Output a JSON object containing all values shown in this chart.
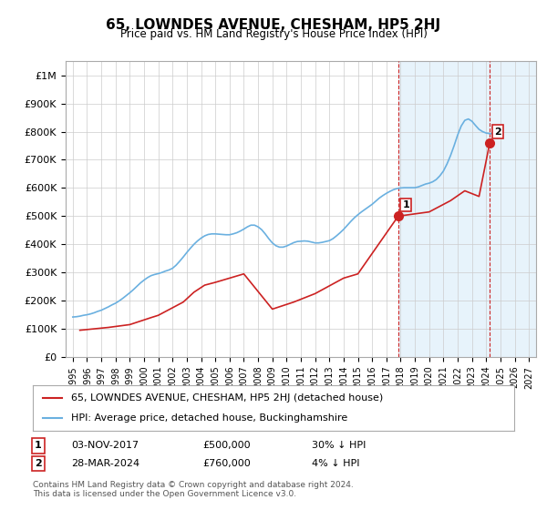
{
  "title": "65, LOWNDES AVENUE, CHESHAM, HP5 2HJ",
  "subtitle": "Price paid vs. HM Land Registry's House Price Index (HPI)",
  "background_color": "#ffffff",
  "plot_bg_color": "#ffffff",
  "grid_color": "#cccccc",
  "hpi_shaded_color": "#d0e8f8",
  "ylabel_color": "#000000",
  "ylim": [
    0,
    1050000
  ],
  "yticks": [
    0,
    100000,
    200000,
    300000,
    400000,
    500000,
    600000,
    700000,
    800000,
    900000,
    1000000
  ],
  "ytick_labels": [
    "£0",
    "£100K",
    "£200K",
    "£300K",
    "£400K",
    "£500K",
    "£600K",
    "£700K",
    "£800K",
    "£900K",
    "£1M"
  ],
  "xlim_start": 1994.5,
  "xlim_end": 2027.5,
  "xticks": [
    1995,
    1996,
    1997,
    1998,
    1999,
    2000,
    2001,
    2002,
    2003,
    2004,
    2005,
    2006,
    2007,
    2008,
    2009,
    2010,
    2011,
    2012,
    2013,
    2014,
    2015,
    2016,
    2017,
    2018,
    2019,
    2020,
    2021,
    2022,
    2023,
    2024,
    2025,
    2026,
    2027
  ],
  "hpi_line_color": "#6ab0e0",
  "price_line_color": "#cc2222",
  "marker_color": "#cc2222",
  "vline_color": "#cc2222",
  "marker1_x": 2017.83,
  "marker1_y": 500000,
  "marker2_x": 2024.25,
  "marker2_y": 760000,
  "sale1_label": "1",
  "sale2_label": "2",
  "sale1_date": "03-NOV-2017",
  "sale1_price": "£500,000",
  "sale1_hpi": "30% ↓ HPI",
  "sale2_date": "28-MAR-2024",
  "sale2_price": "£760,000",
  "sale2_hpi": "4% ↓ HPI",
  "legend_line1": "65, LOWNDES AVENUE, CHESHAM, HP5 2HJ (detached house)",
  "legend_line2": "HPI: Average price, detached house, Buckinghamshire",
  "footer": "Contains HM Land Registry data © Crown copyright and database right 2024.\nThis data is licensed under the Open Government Licence v3.0.",
  "hpi_data_x": [
    1995.0,
    1995.25,
    1995.5,
    1995.75,
    1996.0,
    1996.25,
    1996.5,
    1996.75,
    1997.0,
    1997.25,
    1997.5,
    1997.75,
    1998.0,
    1998.25,
    1998.5,
    1998.75,
    1999.0,
    1999.25,
    1999.5,
    1999.75,
    2000.0,
    2000.25,
    2000.5,
    2000.75,
    2001.0,
    2001.25,
    2001.5,
    2001.75,
    2002.0,
    2002.25,
    2002.5,
    2002.75,
    2003.0,
    2003.25,
    2003.5,
    2003.75,
    2004.0,
    2004.25,
    2004.5,
    2004.75,
    2005.0,
    2005.25,
    2005.5,
    2005.75,
    2006.0,
    2006.25,
    2006.5,
    2006.75,
    2007.0,
    2007.25,
    2007.5,
    2007.75,
    2008.0,
    2008.25,
    2008.5,
    2008.75,
    2009.0,
    2009.25,
    2009.5,
    2009.75,
    2010.0,
    2010.25,
    2010.5,
    2010.75,
    2011.0,
    2011.25,
    2011.5,
    2011.75,
    2012.0,
    2012.25,
    2012.5,
    2012.75,
    2013.0,
    2013.25,
    2013.5,
    2013.75,
    2014.0,
    2014.25,
    2014.5,
    2014.75,
    2015.0,
    2015.25,
    2015.5,
    2015.75,
    2016.0,
    2016.25,
    2016.5,
    2016.75,
    2017.0,
    2017.25,
    2017.5,
    2017.75,
    2018.0,
    2018.25,
    2018.5,
    2018.75,
    2019.0,
    2019.25,
    2019.5,
    2019.75,
    2020.0,
    2020.25,
    2020.5,
    2020.75,
    2021.0,
    2021.25,
    2021.5,
    2021.75,
    2022.0,
    2022.25,
    2022.5,
    2022.75,
    2023.0,
    2023.25,
    2023.5,
    2023.75,
    2024.0,
    2024.25,
    2024.5
  ],
  "hpi_data_y": [
    142000,
    143000,
    145000,
    148000,
    150000,
    153000,
    157000,
    162000,
    166000,
    172000,
    178000,
    185000,
    191000,
    199000,
    208000,
    218000,
    228000,
    239000,
    251000,
    263000,
    273000,
    282000,
    289000,
    293000,
    296000,
    300000,
    305000,
    309000,
    315000,
    326000,
    340000,
    355000,
    371000,
    386000,
    400000,
    412000,
    422000,
    430000,
    435000,
    437000,
    437000,
    436000,
    435000,
    434000,
    434000,
    437000,
    441000,
    447000,
    454000,
    462000,
    468000,
    468000,
    462000,
    452000,
    437000,
    420000,
    405000,
    395000,
    390000,
    390000,
    394000,
    400000,
    406000,
    410000,
    411000,
    412000,
    411000,
    408000,
    405000,
    405000,
    407000,
    410000,
    413000,
    420000,
    430000,
    441000,
    453000,
    467000,
    481000,
    494000,
    505000,
    515000,
    524000,
    533000,
    542000,
    553000,
    564000,
    573000,
    581000,
    588000,
    594000,
    598000,
    600000,
    601000,
    601000,
    601000,
    601000,
    604000,
    609000,
    614000,
    617000,
    622000,
    630000,
    643000,
    660000,
    685000,
    715000,
    750000,
    788000,
    820000,
    840000,
    845000,
    837000,
    822000,
    808000,
    800000,
    795000,
    793000,
    793000
  ],
  "price_data_x": [
    1995.5,
    1997.5,
    1999.0,
    2000.5,
    2001.0,
    2002.75,
    2003.5,
    2004.25,
    2005.0,
    2006.0,
    2007.0,
    2009.0,
    2010.5,
    2012.0,
    2014.0,
    2015.0,
    2017.83,
    2020.0,
    2021.5,
    2022.5,
    2023.0,
    2023.5,
    2024.25
  ],
  "price_data_y": [
    95000,
    105000,
    115000,
    140000,
    148000,
    195000,
    230000,
    255000,
    265000,
    280000,
    295000,
    170000,
    195000,
    225000,
    280000,
    295000,
    500000,
    515000,
    555000,
    590000,
    580000,
    570000,
    760000
  ],
  "shade_start_x": 2017.83,
  "shade_end_x": 2027.5
}
